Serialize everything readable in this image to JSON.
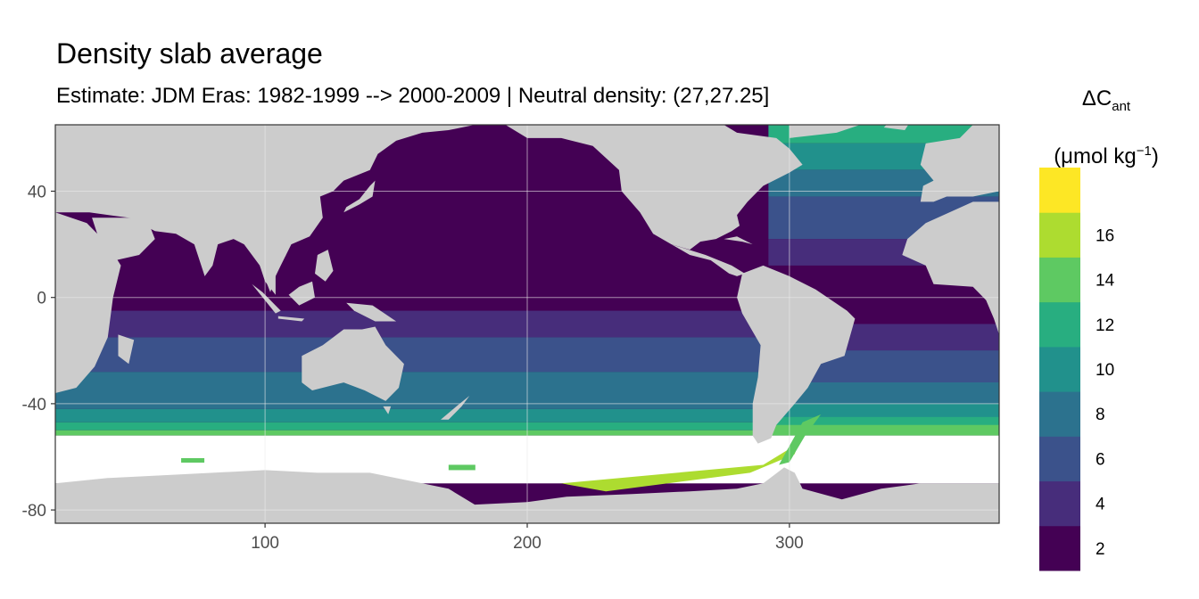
{
  "title": "Density slab average",
  "subtitle": "Estimate: JDM Eras: 1982-1999 --> 2000-2009 | Neutral density: (27,27.25]",
  "legend": {
    "symbol": "ΔC",
    "subscript": "ant",
    "unit_prefix": "(μmol kg",
    "unit_exp": "−1",
    "unit_suffix": ")",
    "breaks": [
      "2",
      "4",
      "6",
      "8",
      "10",
      "12",
      "14",
      "16"
    ],
    "colors": [
      "#440154",
      "#472d7b",
      "#3b528b",
      "#2c728e",
      "#21918c",
      "#28ae80",
      "#5ec962",
      "#addc30",
      "#fde725"
    ]
  },
  "colors": {
    "land": "#cccccc",
    "missing": "#ffffff",
    "gridline": "#ebebeb",
    "frame": "#333333"
  },
  "chart_data": {
    "type": "heatmap",
    "title": "Density slab average",
    "subtitle": "Estimate: JDM Eras: 1982-1999 --> 2000-2009 | Neutral density: (27,27.25]",
    "xlabel": "",
    "ylabel": "",
    "xlim": [
      20,
      380
    ],
    "ylim": [
      -85,
      65
    ],
    "x_ticks": [
      100,
      200,
      300
    ],
    "y_ticks": [
      -80,
      -40,
      0,
      40
    ],
    "legend_position": "right",
    "grid": true,
    "bins": [
      [
        0,
        2
      ],
      [
        2,
        4
      ],
      [
        4,
        6
      ],
      [
        6,
        8
      ],
      [
        8,
        10
      ],
      [
        10,
        12
      ],
      [
        12,
        14
      ],
      [
        14,
        16
      ],
      [
        16,
        18
      ]
    ],
    "zonal_profile_pacific_indian": [
      {
        "lat_min": -5,
        "lat_max": 65,
        "value": 1
      },
      {
        "lat_min": -15,
        "lat_max": -5,
        "value": 3
      },
      {
        "lat_min": -28,
        "lat_max": -15,
        "value": 5
      },
      {
        "lat_min": -42,
        "lat_max": -28,
        "value": 7
      },
      {
        "lat_min": -47,
        "lat_max": -42,
        "value": 9
      },
      {
        "lat_min": -50,
        "lat_max": -47,
        "value": 11
      },
      {
        "lat_min": -52,
        "lat_max": -50,
        "value": 13
      }
    ],
    "zonal_profile_atlantic": [
      {
        "lat_min": 58,
        "lat_max": 65,
        "value": 11
      },
      {
        "lat_min": 48,
        "lat_max": 58,
        "value": 9
      },
      {
        "lat_min": 38,
        "lat_max": 48,
        "value": 7
      },
      {
        "lat_min": 22,
        "lat_max": 38,
        "value": 5
      },
      {
        "lat_min": 12,
        "lat_max": 22,
        "value": 3
      },
      {
        "lat_min": -10,
        "lat_max": 12,
        "value": 1
      },
      {
        "lat_min": -20,
        "lat_max": -10,
        "value": 3
      },
      {
        "lat_min": -32,
        "lat_max": -20,
        "value": 5
      },
      {
        "lat_min": -40,
        "lat_max": -32,
        "value": 7
      },
      {
        "lat_min": -45,
        "lat_max": -40,
        "value": 9
      },
      {
        "lat_min": -48,
        "lat_max": -45,
        "value": 11
      },
      {
        "lat_min": -52,
        "lat_max": -48,
        "value": 13
      }
    ],
    "southern_ocean_band": {
      "lat_min": -70,
      "lat_max": -52,
      "value": "missing"
    },
    "weddell_feature": {
      "value": 15
    }
  }
}
